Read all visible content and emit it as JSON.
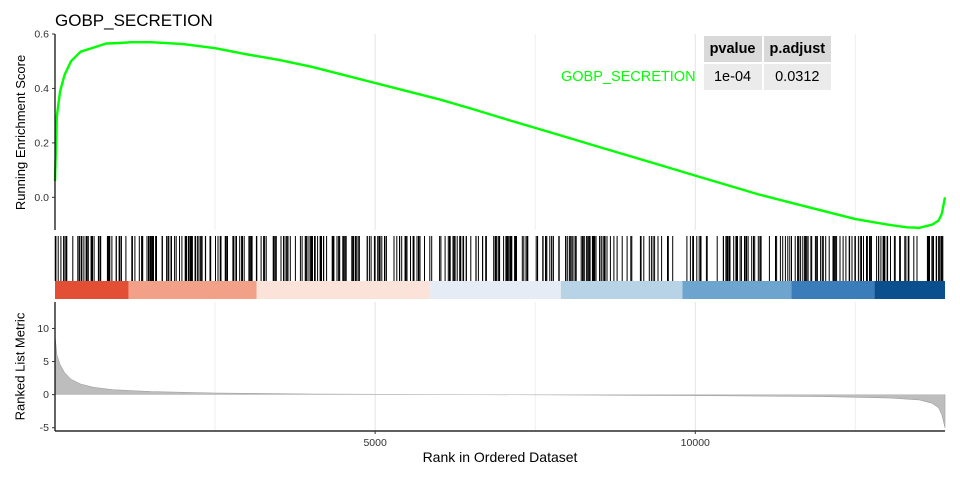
{
  "chart_data": {
    "type": "line",
    "title": "GOBP_SECRETION",
    "xlabel": "Rank in Ordered Dataset",
    "xlim": [
      0,
      13900
    ],
    "x_ticks": [
      5000,
      10000
    ],
    "series_color": "#00ff00",
    "panels": {
      "running_es": {
        "ylabel": "Running Enrichment Score",
        "ylim": [
          -0.12,
          0.6
        ],
        "y_ticks": [
          0.0,
          0.2,
          0.4,
          0.6
        ],
        "x": [
          0,
          30,
          80,
          150,
          250,
          400,
          600,
          800,
          1000,
          1200,
          1500,
          2000,
          2500,
          3000,
          3500,
          4000,
          4500,
          5000,
          5500,
          6000,
          6500,
          7000,
          7500,
          8000,
          8500,
          9000,
          9500,
          10000,
          10500,
          11000,
          11500,
          12000,
          12500,
          13000,
          13300,
          13500,
          13700,
          13800,
          13850,
          13900
        ],
        "y": [
          0.06,
          0.3,
          0.39,
          0.45,
          0.5,
          0.535,
          0.55,
          0.565,
          0.567,
          0.57,
          0.57,
          0.563,
          0.548,
          0.525,
          0.505,
          0.48,
          0.45,
          0.42,
          0.39,
          0.36,
          0.326,
          0.29,
          0.255,
          0.22,
          0.185,
          0.15,
          0.115,
          0.08,
          0.045,
          0.01,
          -0.02,
          -0.05,
          -0.08,
          -0.1,
          -0.11,
          -0.112,
          -0.1,
          -0.085,
          -0.06,
          0.0
        ]
      },
      "ranked_list_metric": {
        "ylabel": "Ranked List Metric",
        "ylim": [
          -5.5,
          14
        ],
        "y_ticks": [
          -5,
          0,
          5,
          10
        ],
        "x": [
          0,
          30,
          80,
          150,
          250,
          400,
          600,
          900,
          1500,
          2500,
          4000,
          6000,
          8000,
          10000,
          12000,
          13000,
          13500,
          13700,
          13800,
          13850,
          13900
        ],
        "y": [
          9,
          6,
          4.5,
          3.3,
          2.3,
          1.6,
          1.1,
          0.75,
          0.45,
          0.25,
          0.1,
          0.0,
          -0.05,
          -0.15,
          -0.3,
          -0.5,
          -0.8,
          -1.3,
          -2.0,
          -3.0,
          -5.0
        ]
      }
    },
    "table": {
      "columns": [
        "pvalue",
        "p.adjust"
      ],
      "rows": [
        {
          "name": "GOBP_SECRETION",
          "pvalue": "1e-04",
          "p.adjust": "0.0312"
        }
      ]
    }
  }
}
